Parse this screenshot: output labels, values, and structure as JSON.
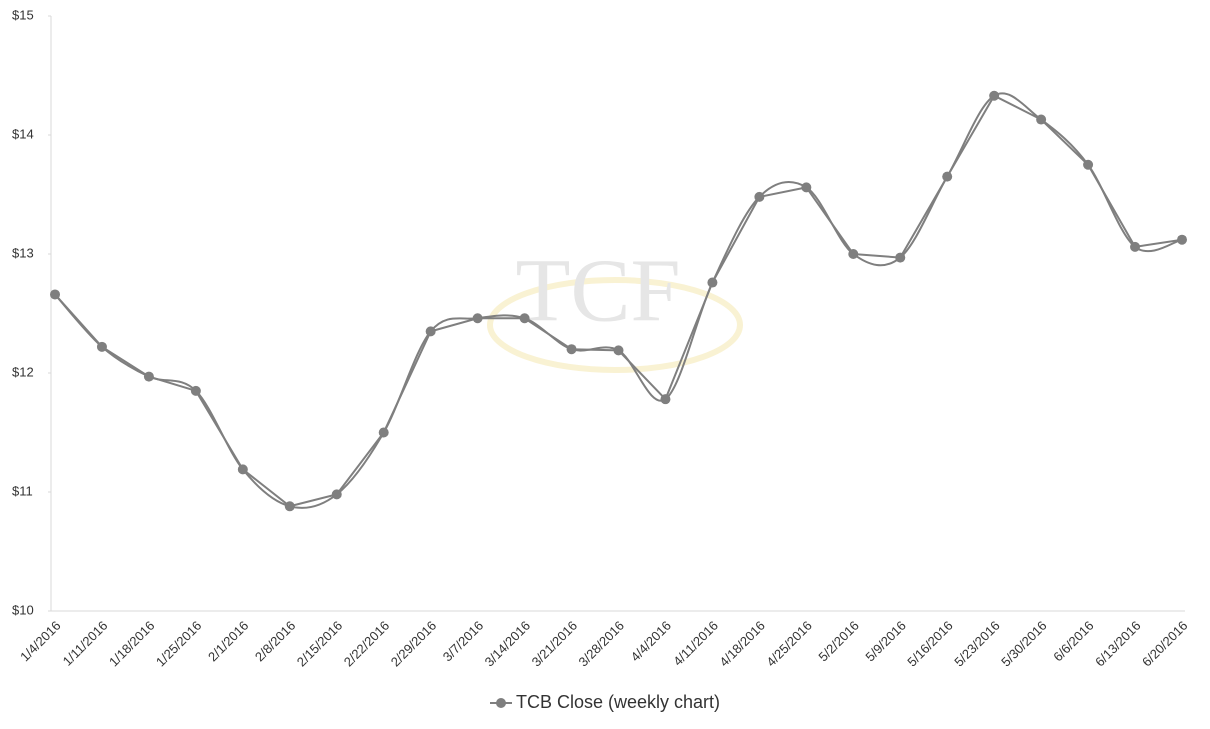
{
  "chart_data": {
    "type": "line",
    "watermark": "TCF",
    "categories": [
      "1/4/2016",
      "1/11/2016",
      "1/18/2016",
      "1/25/2016",
      "2/1/2016",
      "2/8/2016",
      "2/15/2016",
      "2/22/2016",
      "2/29/2016",
      "3/7/2016",
      "3/14/2016",
      "3/21/2016",
      "3/28/2016",
      "4/4/2016",
      "4/11/2016",
      "4/18/2016",
      "4/25/2016",
      "5/2/2016",
      "5/9/2016",
      "5/16/2016",
      "5/23/2016",
      "5/30/2016",
      "6/6/2016",
      "6/13/2016",
      "6/20/2016"
    ],
    "series": [
      {
        "name": "TCB Close (weekly chart)",
        "color": "#7f7f7f",
        "values": [
          12.66,
          12.22,
          11.97,
          11.85,
          11.19,
          10.88,
          10.98,
          11.5,
          12.35,
          12.46,
          12.46,
          12.2,
          12.19,
          11.78,
          12.76,
          13.48,
          13.56,
          13.0,
          12.97,
          13.65,
          14.33,
          14.13,
          13.75,
          13.06,
          13.12
        ]
      }
    ],
    "ylim": [
      10,
      15
    ],
    "yticks": [
      {
        "value": 10,
        "label": "$10"
      },
      {
        "value": 11,
        "label": "$11"
      },
      {
        "value": 12,
        "label": "$12"
      },
      {
        "value": 13,
        "label": "$13"
      },
      {
        "value": 14,
        "label": "$14"
      },
      {
        "value": 15,
        "label": "$15"
      }
    ],
    "legend": "bottom"
  }
}
